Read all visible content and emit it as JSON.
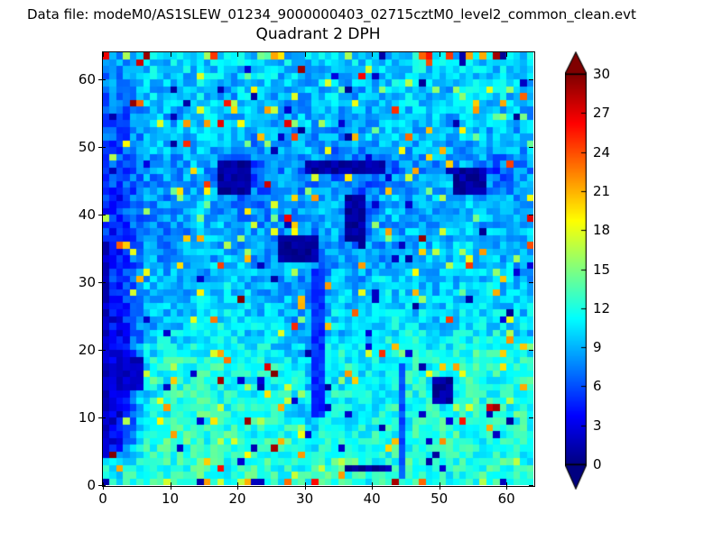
{
  "header": {
    "data_file_label": "Data file: modeM0/AS1SLEW_01234_9000000403_02715cztM0_level2_common_clean.evt"
  },
  "chart_data": {
    "type": "heatmap",
    "title": "Quadrant 2 DPH",
    "xlabel": "",
    "ylabel": "",
    "x_range": [
      0,
      64
    ],
    "y_range": [
      0,
      64
    ],
    "x_ticks": [
      0,
      10,
      20,
      30,
      40,
      50,
      60
    ],
    "y_ticks": [
      0,
      10,
      20,
      30,
      40,
      50,
      60
    ],
    "grid_size": 64,
    "colormap": "jet",
    "background_color": "#ffffff",
    "frame_color": "#000000",
    "colorbar": {
      "vmin": 0,
      "vmax": 30,
      "ticks": [
        0,
        3,
        6,
        9,
        12,
        15,
        18,
        21,
        24,
        27,
        30
      ],
      "extend": "both",
      "over_color": "#800000",
      "under_color": "#000080"
    },
    "data_synthesis": {
      "seed": 20715,
      "coarse_means_rows_bottom_to_top": [
        [
          11,
          13,
          12,
          13,
          12,
          13,
          12,
          12,
          13,
          12,
          12,
          13,
          12,
          12,
          13,
          12
        ],
        [
          4,
          12,
          13,
          12,
          12,
          12,
          13,
          11,
          12,
          12,
          12,
          12,
          13,
          12,
          12,
          12
        ],
        [
          3,
          12,
          12,
          13,
          12,
          12,
          12,
          10,
          12,
          11,
          12,
          12,
          12,
          13,
          12,
          12
        ],
        [
          3,
          10,
          12,
          12,
          12,
          11,
          12,
          10,
          11,
          11,
          11,
          12,
          11,
          12,
          12,
          12
        ],
        [
          3,
          11,
          12,
          12,
          12,
          12,
          11,
          10,
          12,
          11,
          11,
          12,
          12,
          13,
          12,
          12
        ],
        [
          3,
          9,
          10,
          11,
          11,
          10,
          10,
          9,
          10,
          10,
          11,
          11,
          10,
          11,
          11,
          10
        ],
        [
          4,
          9,
          9,
          10,
          10,
          10,
          9,
          8,
          10,
          9,
          10,
          10,
          10,
          10,
          10,
          10
        ],
        [
          5,
          9,
          9,
          9,
          10,
          9,
          9,
          8,
          9,
          9,
          10,
          9,
          9,
          10,
          10,
          9
        ],
        [
          5,
          8,
          8,
          9,
          9,
          8,
          9,
          8,
          8,
          8,
          8,
          9,
          9,
          10,
          9,
          9
        ],
        [
          5,
          8,
          8,
          9,
          9,
          8,
          8,
          8,
          9,
          7,
          9,
          9,
          9,
          9,
          9,
          9
        ],
        [
          5,
          8,
          8,
          9,
          8,
          7,
          8,
          8,
          9,
          7,
          9,
          9,
          9,
          9,
          8,
          9
        ],
        [
          6,
          8,
          8,
          9,
          6,
          6,
          8,
          8,
          6,
          6,
          7,
          8,
          8,
          9,
          6,
          8
        ],
        [
          6,
          9,
          9,
          9,
          9,
          8,
          9,
          9,
          8,
          9,
          9,
          9,
          9,
          9,
          9,
          9
        ],
        [
          6,
          9,
          9,
          10,
          9,
          9,
          9,
          9,
          9,
          9,
          9,
          10,
          9,
          10,
          9,
          9
        ],
        [
          7,
          10,
          9,
          10,
          9,
          10,
          9,
          9,
          10,
          9,
          10,
          10,
          9,
          10,
          10,
          10
        ],
        [
          8,
          10,
          10,
          10,
          10,
          10,
          10,
          10,
          10,
          10,
          10,
          11,
          10,
          10,
          10,
          10
        ]
      ],
      "noise_amplitude": 2.2,
      "hot_fraction": 0.05,
      "hot_min": 14,
      "hot_max": 22,
      "extreme_fraction": 0.012,
      "extreme_min": 22,
      "extreme_max": 30,
      "dark_fraction": 0.02,
      "dark_min": 0.5,
      "dark_max": 3,
      "edge_hot_fraction": 0.2,
      "edge_dark_fraction": 0.08,
      "dark_patches": [
        {
          "x": 0,
          "y": 4,
          "w": 1,
          "h": 32,
          "value": 2
        },
        {
          "x": 2,
          "y": 14,
          "w": 4,
          "h": 5,
          "value": 2
        },
        {
          "x": 17,
          "y": 43,
          "w": 5,
          "h": 5,
          "value": 1
        },
        {
          "x": 26,
          "y": 33,
          "w": 6,
          "h": 4,
          "value": 1
        },
        {
          "x": 36,
          "y": 36,
          "w": 3,
          "h": 7,
          "value": 1
        },
        {
          "x": 30,
          "y": 46,
          "w": 12,
          "h": 2,
          "value": 1
        },
        {
          "x": 52,
          "y": 43,
          "w": 5,
          "h": 4,
          "value": 1
        },
        {
          "x": 49,
          "y": 12,
          "w": 3,
          "h": 4,
          "value": 1
        },
        {
          "x": 31,
          "y": 10,
          "w": 2,
          "h": 22,
          "value": 5
        },
        {
          "x": 44,
          "y": 1,
          "w": 1,
          "h": 17,
          "value": 6
        },
        {
          "x": 36,
          "y": 2,
          "w": 7,
          "h": 1,
          "value": 1
        }
      ]
    }
  }
}
